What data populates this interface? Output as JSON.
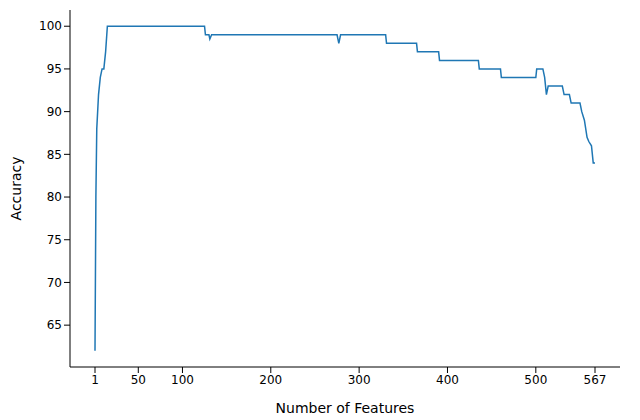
{
  "chart_data": {
    "type": "line",
    "x_label": "Number of Features",
    "y_label": "Accuracy",
    "x": [
      1,
      2,
      3,
      5,
      7,
      9,
      11,
      13,
      15,
      125,
      126,
      130,
      131,
      133,
      275,
      277,
      279,
      330,
      331,
      365,
      366,
      390,
      391,
      435,
      436,
      460,
      461,
      500,
      501,
      508,
      510,
      512,
      514,
      530,
      532,
      538,
      540,
      550,
      552,
      555,
      558,
      560,
      563,
      565,
      567
    ],
    "values": [
      62,
      80,
      88,
      92,
      94,
      95,
      95,
      97,
      100,
      100,
      99,
      99,
      98.5,
      99,
      99,
      98,
      99,
      99,
      98,
      98,
      97,
      97,
      96,
      96,
      95,
      95,
      94,
      94,
      95,
      95,
      94,
      92,
      93,
      93,
      92,
      92,
      91,
      91,
      90,
      89,
      87,
      86.5,
      86,
      84,
      84
    ],
    "color": "#1f77b4",
    "xlim": [
      -27.3,
      595.3
    ],
    "ylim": [
      60.1,
      101.9
    ],
    "xticks": [
      1,
      50,
      100,
      200,
      300,
      400,
      500,
      567
    ],
    "yticks": [
      65,
      70,
      75,
      80,
      85,
      90,
      95,
      100
    ],
    "grid": false
  }
}
